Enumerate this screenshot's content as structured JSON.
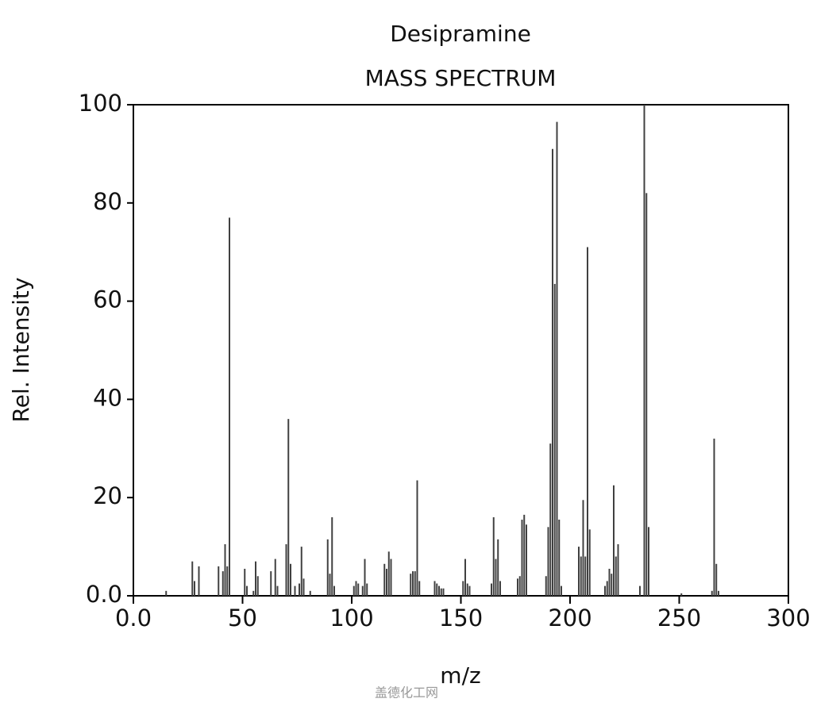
{
  "chart_data": {
    "type": "stem",
    "title": "Desipramine",
    "subtitle": "MASS SPECTRUM",
    "x_label": "m/z",
    "y_label": "Rel. Intensity",
    "color": "#404040",
    "xlim": [
      0,
      300
    ],
    "ylim": [
      0,
      100
    ],
    "xticks": [
      {
        "value": 0,
        "label": "0.0"
      },
      50,
      100,
      150,
      200,
      250,
      300
    ],
    "yticks": [
      {
        "value": 0,
        "label": "0.0"
      },
      20,
      40,
      60,
      80,
      100
    ],
    "x": [
      15,
      27,
      28,
      30,
      39,
      41,
      42,
      43,
      44,
      51,
      52,
      55,
      56,
      57,
      63,
      65,
      66,
      70,
      71,
      72,
      74,
      76,
      77,
      78,
      81,
      89,
      90,
      91,
      92,
      101,
      102,
      103,
      105,
      106,
      107,
      115,
      116,
      117,
      118,
      127,
      128,
      129,
      130,
      131,
      138,
      139,
      140,
      141,
      142,
      151,
      152,
      153,
      154,
      164,
      165,
      166,
      167,
      168,
      176,
      177,
      178,
      179,
      180,
      189,
      190,
      191,
      192,
      193,
      194,
      195,
      196,
      204,
      205,
      206,
      207,
      208,
      209,
      216,
      217,
      218,
      219,
      220,
      221,
      222,
      232,
      234,
      235,
      236,
      251,
      265,
      266,
      267,
      268
    ],
    "values": [
      1,
      7,
      3,
      6,
      6,
      5,
      10.5,
      6,
      77,
      5.5,
      2,
      1,
      7,
      4,
      5,
      7.5,
      2,
      10.5,
      36,
      6.5,
      2,
      2.5,
      10,
      3.5,
      1,
      11.5,
      4.5,
      16,
      2,
      2,
      3,
      2.5,
      2,
      7.5,
      2.5,
      6.5,
      5.5,
      9,
      7.5,
      4.5,
      5,
      5,
      23.5,
      3,
      3,
      2.5,
      2,
      1.5,
      1.5,
      3,
      7.5,
      2.5,
      2,
      2.5,
      16,
      7.5,
      11.5,
      3,
      3.5,
      4,
      15.5,
      16.5,
      14.5,
      4,
      14,
      31,
      91,
      63.5,
      96.5,
      15.5,
      2,
      10,
      8,
      19.5,
      8,
      71,
      13.5,
      2,
      3,
      5.5,
      4.5,
      22.5,
      8,
      10.5,
      2,
      100,
      82,
      14,
      0.5,
      1,
      32,
      6.5,
      1
    ],
    "watermark": "盖德化工网"
  }
}
